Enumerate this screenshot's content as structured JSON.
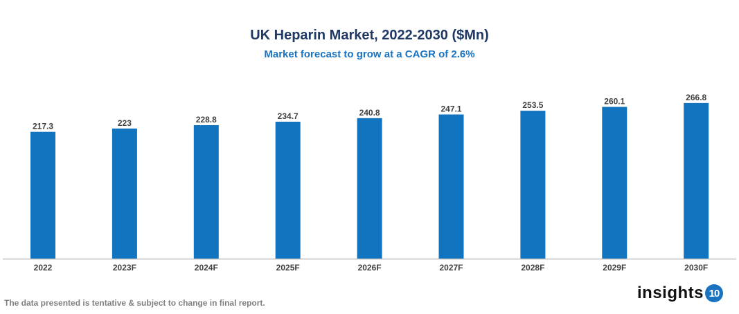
{
  "chart_data": {
    "type": "bar",
    "title": "UK Heparin Market, 2022-2030 ($Mn)",
    "subtitle": "Market forecast to grow at a CAGR of 2.6%",
    "categories": [
      "2022",
      "2023F",
      "2024F",
      "2025F",
      "2026F",
      "2027F",
      "2028F",
      "2029F",
      "2030F"
    ],
    "values": [
      217.3,
      223,
      228.8,
      234.7,
      240.8,
      247.1,
      253.5,
      260.1,
      266.8
    ],
    "xlabel": "",
    "ylabel": "",
    "ylim": [
      0,
      320
    ],
    "grid": false,
    "bar_color": "#1273be"
  },
  "footnote": "The data presented is tentative & subject to change in final report.",
  "logo": {
    "text": "insights",
    "badge": "10"
  }
}
